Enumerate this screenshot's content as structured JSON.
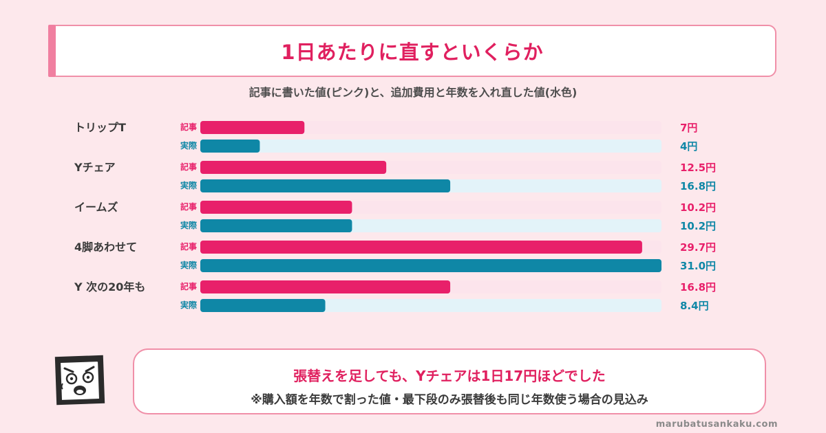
{
  "title": "1日あたりに直すといくらか",
  "subtitle": "記事に書いた値(ピンク)と、追加費用と年数を入れ直した値(水色)",
  "colors": {
    "pink": "#e8206a",
    "pink_track": "#fce4ec",
    "blue": "#0f87a6",
    "blue_track": "#e3f3f9",
    "accent": "#e0205f"
  },
  "chart_data": {
    "type": "bar",
    "orientation": "horizontal",
    "categories": [
      "トリップT",
      "Yチェア",
      "イームズ",
      "4脚あわせて",
      "Y 次の20年も"
    ],
    "series": [
      {
        "name": "記事",
        "color": "#e8206a",
        "values": [
          7,
          12.5,
          10.2,
          29.7,
          16.8
        ],
        "labels": [
          "7円",
          "12.5円",
          "10.2円",
          "29.7円",
          "16.8円"
        ]
      },
      {
        "name": "実際",
        "color": "#0f87a6",
        "values": [
          4,
          16.8,
          10.2,
          31.0,
          8.4
        ],
        "labels": [
          "4円",
          "16.8円",
          "10.2円",
          "31.0円",
          "8.4円"
        ]
      }
    ]
  },
  "callout": {
    "main": "張替えを足しても、Yチェアは1日17円ほどでした",
    "note": "※購入額を年数で割った値・最下段のみ張替後も同じ年数使う場合の見込み"
  },
  "mascot_icon": "shocked-square-face-icon",
  "credit": "marubatusankaku.com"
}
